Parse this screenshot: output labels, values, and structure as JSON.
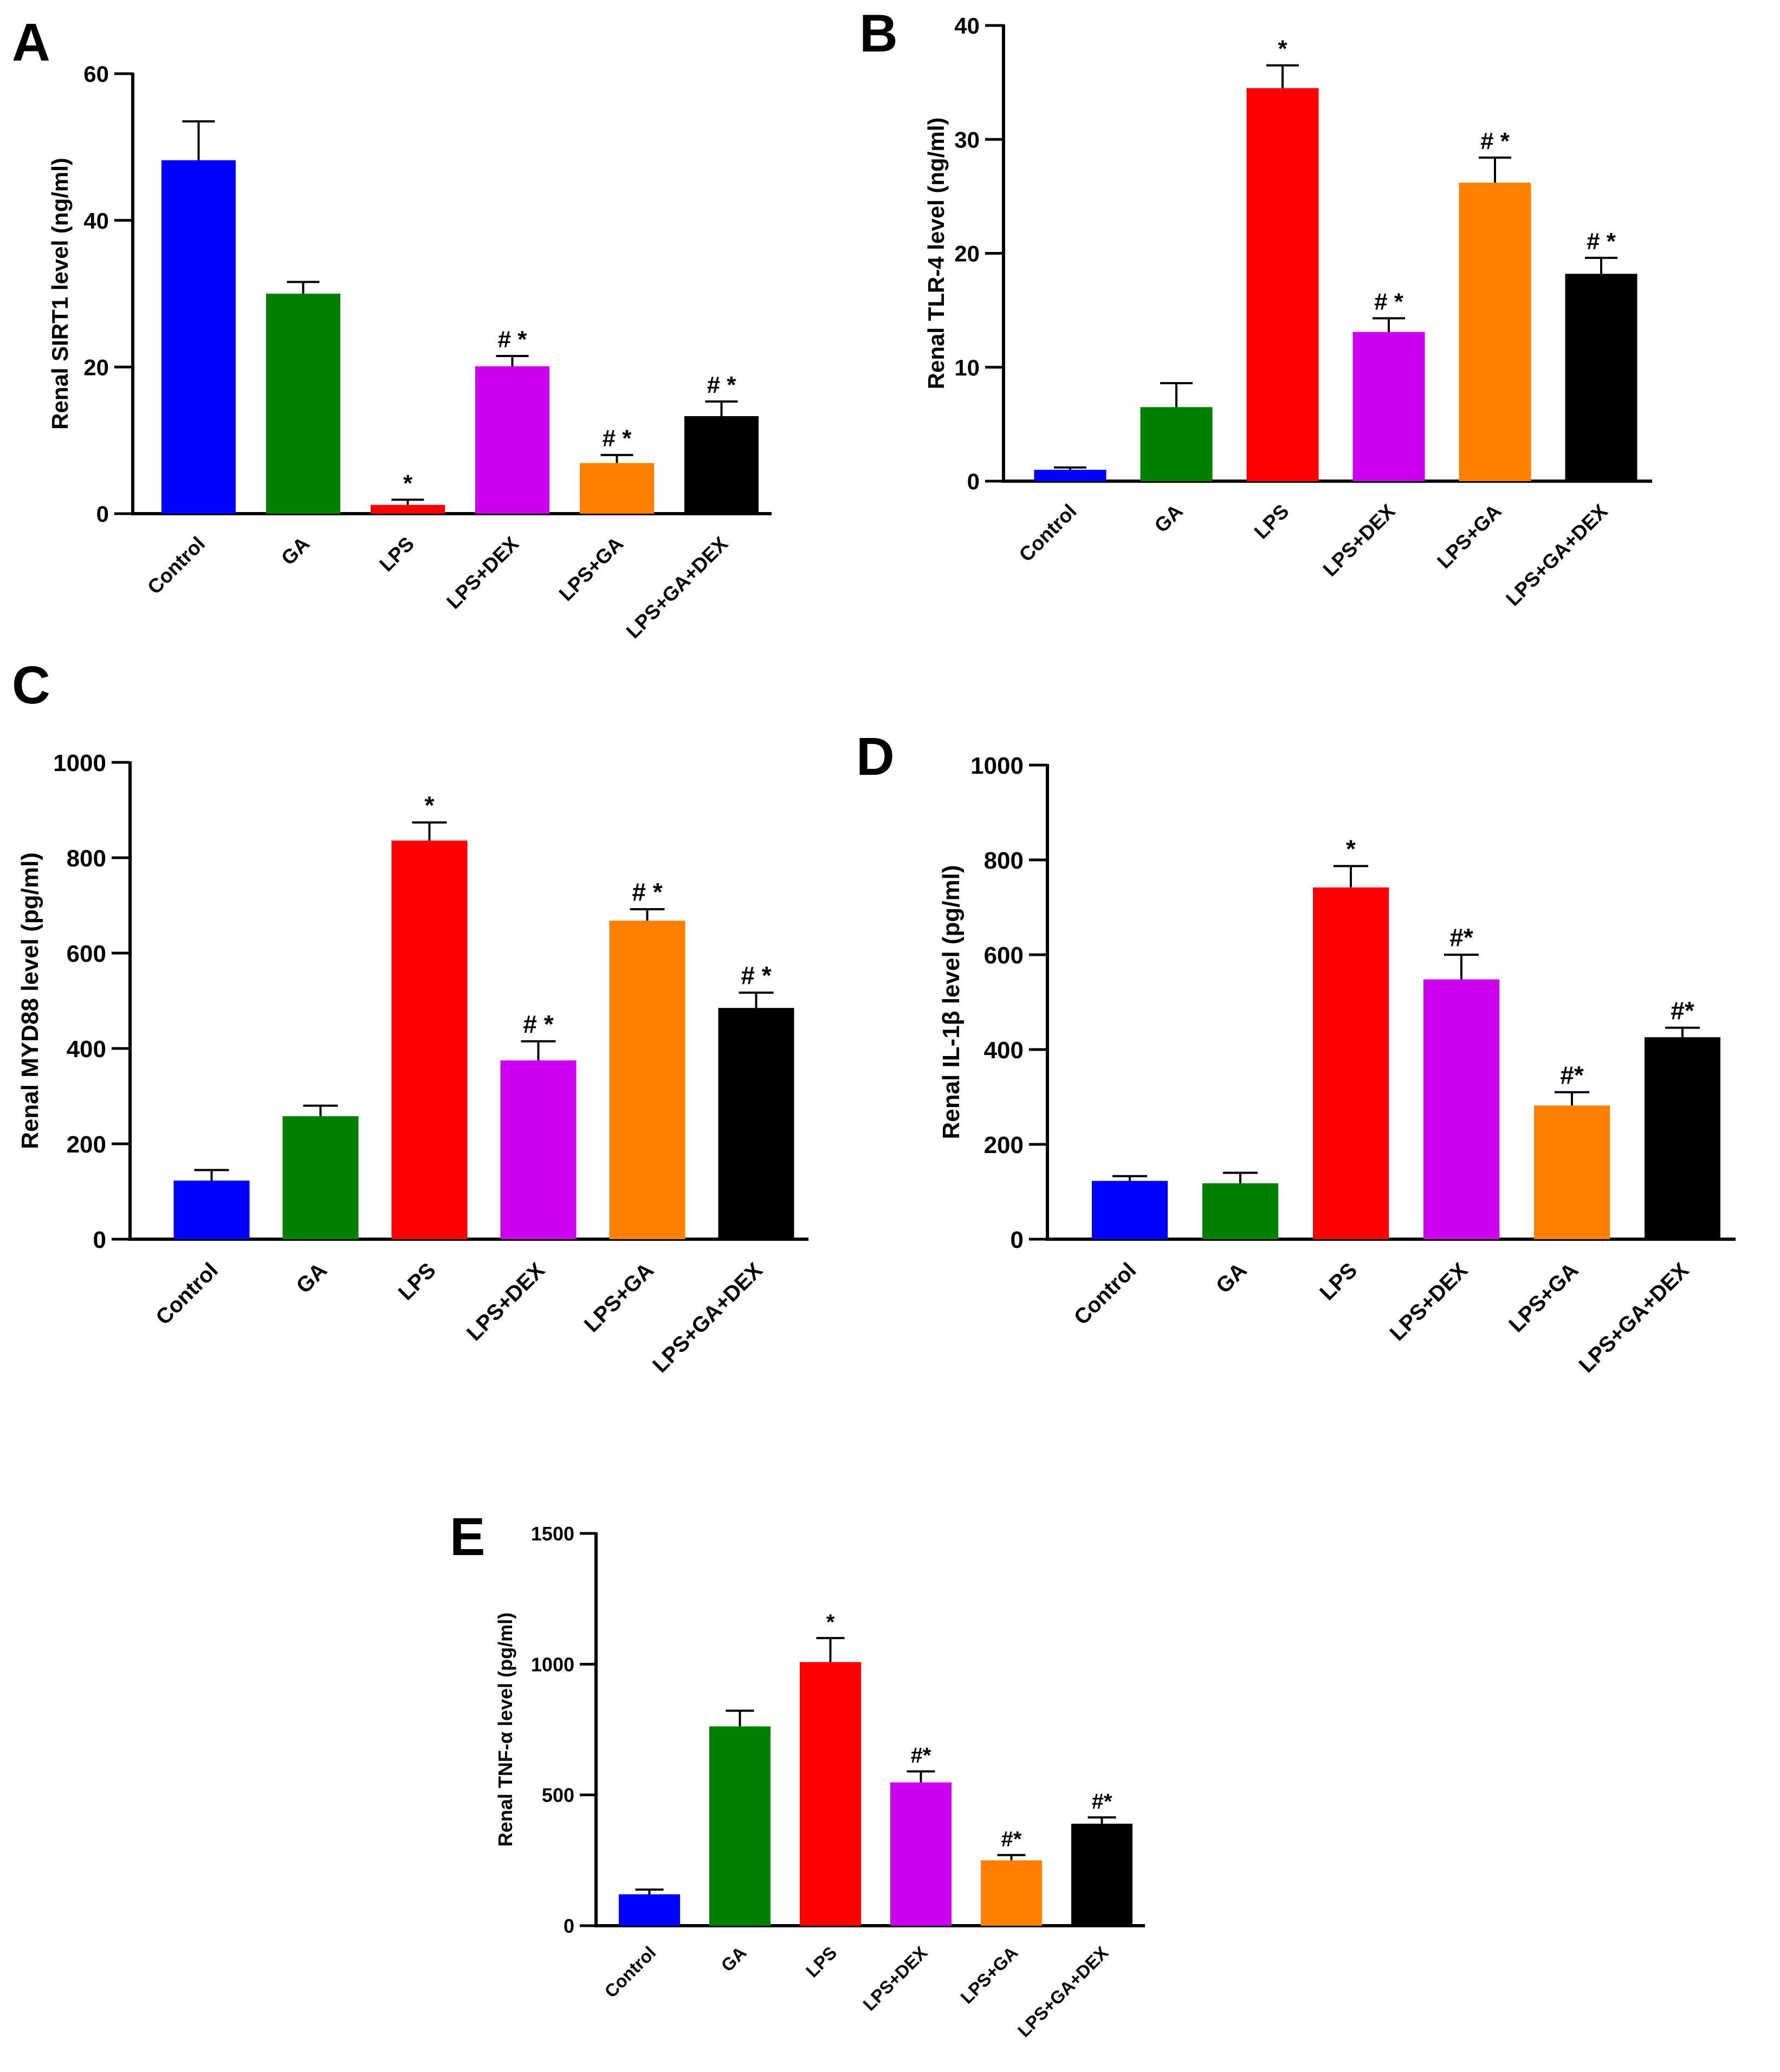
{
  "figure": {
    "panels": [
      "A",
      "B",
      "C",
      "D",
      "E"
    ]
  },
  "chart_data": [
    {
      "id": "A",
      "type": "bar",
      "panel_label": "A",
      "title": "",
      "xlabel": "",
      "ylabel": "Renal SIRT1 level (ng/ml)",
      "ylim": [
        0,
        60
      ],
      "yticks": [
        0,
        20,
        40,
        60
      ],
      "categories": [
        "Control",
        "GA",
        "LPS",
        "LPS+DEX",
        "LPS+GA",
        "LPS+GA+DEX"
      ],
      "values": [
        48.2,
        30.0,
        1.2,
        20.1,
        6.9,
        13.3
      ],
      "errors": [
        5.3,
        1.6,
        0.7,
        1.4,
        1.1,
        2.0
      ],
      "annotations": [
        "",
        "",
        "*",
        "# *",
        "# *",
        "# *"
      ],
      "colors": [
        "#0000ff",
        "#008000",
        "#ff0000",
        "#cc00ee",
        "#ff8000",
        "#000000"
      ]
    },
    {
      "id": "B",
      "type": "bar",
      "panel_label": "B",
      "title": "",
      "xlabel": "",
      "ylabel": "Renal TLR-4 level (ng/ml)",
      "ylim": [
        0,
        40
      ],
      "yticks": [
        0,
        10,
        20,
        30,
        40
      ],
      "categories": [
        "Control",
        "GA",
        "LPS",
        "LPS+DEX",
        "LPS+GA",
        "LPS+GA+DEX"
      ],
      "values": [
        1.0,
        6.5,
        34.5,
        13.1,
        26.2,
        18.2
      ],
      "errors": [
        0.2,
        2.1,
        2.0,
        1.2,
        2.2,
        1.4
      ],
      "annotations": [
        "",
        "",
        "*",
        "# *",
        "# *",
        "# *"
      ],
      "colors": [
        "#0000ff",
        "#008000",
        "#ff0000",
        "#cc00ee",
        "#ff8000",
        "#000000"
      ]
    },
    {
      "id": "C",
      "type": "bar",
      "panel_label": "C",
      "title": "",
      "xlabel": "",
      "ylabel": "Renal MYD88 level  (pg/ml)",
      "ylim": [
        0,
        1000
      ],
      "yticks": [
        0,
        200,
        400,
        600,
        800,
        1000
      ],
      "categories": [
        "Control",
        "GA",
        "LPS",
        "LPS+DEX",
        "LPS+GA",
        "LPS+GA+DEX"
      ],
      "values": [
        123,
        258,
        836,
        375,
        668,
        485
      ],
      "errors": [
        22,
        22,
        38,
        40,
        24,
        32
      ],
      "annotations": [
        "",
        "",
        "*",
        "# *",
        "# *",
        "# *"
      ],
      "colors": [
        "#0000ff",
        "#008000",
        "#ff0000",
        "#cc00ee",
        "#ff8000",
        "#000000"
      ]
    },
    {
      "id": "D",
      "type": "bar",
      "panel_label": "D",
      "title": "",
      "xlabel": "",
      "ylabel": "Renal IL-1β level (pg/ml)",
      "ylim": [
        0,
        1000
      ],
      "yticks": [
        0,
        200,
        400,
        600,
        800,
        1000
      ],
      "categories": [
        "Control",
        "GA",
        "LPS",
        "LPS+DEX",
        "LPS+GA",
        "LPS+GA+DEX"
      ],
      "values": [
        123,
        118,
        742,
        548,
        282,
        426
      ],
      "errors": [
        10,
        22,
        45,
        52,
        28,
        20
      ],
      "annotations": [
        "",
        "",
        "*",
        "#*",
        "#*",
        "#*"
      ],
      "colors": [
        "#0000ff",
        "#008000",
        "#ff0000",
        "#cc00ee",
        "#ff8000",
        "#000000"
      ]
    },
    {
      "id": "E",
      "type": "bar",
      "panel_label": "E",
      "title": "",
      "xlabel": "",
      "ylabel": "Renal TNF-α level (pg/ml)",
      "ylim": [
        0,
        1500
      ],
      "yticks": [
        0,
        500,
        1000,
        1500
      ],
      "categories": [
        "Control",
        "GA",
        "LPS",
        "LPS+DEX",
        "LPS+GA",
        "LPS+GA+DEX"
      ],
      "values": [
        120,
        762,
        1008,
        548,
        250,
        390
      ],
      "errors": [
        18,
        60,
        92,
        42,
        20,
        24
      ],
      "annotations": [
        "",
        "",
        "*",
        "#*",
        "#*",
        "#*"
      ],
      "colors": [
        "#0000ff",
        "#008000",
        "#ff0000",
        "#cc00ee",
        "#ff8000",
        "#000000"
      ]
    }
  ]
}
